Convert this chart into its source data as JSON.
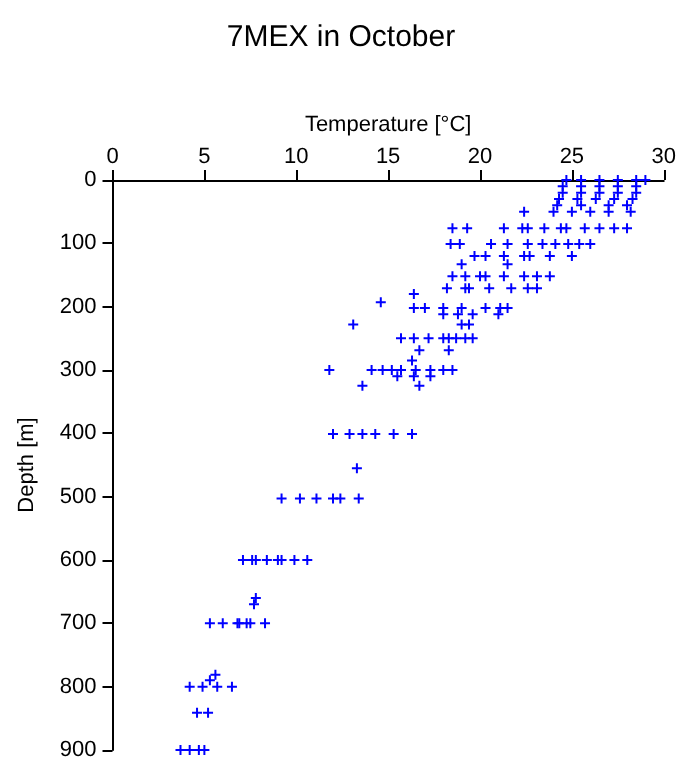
{
  "chart_data": {
    "type": "scatter",
    "title": "7MEX in October",
    "xlabel": "Temperature [°C]",
    "ylabel": "Depth [m]",
    "x": [
      24.7,
      25.5,
      26.5,
      27.5,
      28.5,
      29,
      24.5,
      25.5,
      26.5,
      27.5,
      28.5,
      24.5,
      25.5,
      26.5,
      27.5,
      28.5,
      24.3,
      25.3,
      26.3,
      27.3,
      28.3,
      24.2,
      25.5,
      27,
      28,
      22.4,
      24,
      25,
      26,
      27,
      28.2,
      18.5,
      19.3,
      21.3,
      22.3,
      22.6,
      23.5,
      24.4,
      24.7,
      25.7,
      26.5,
      27.3,
      28,
      18.4,
      18.9,
      20.6,
      21.5,
      22.6,
      23.4,
      24.1,
      24.8,
      25.4,
      26,
      19.7,
      20.3,
      21.3,
      22.4,
      22.7,
      23.8,
      25,
      19,
      21.5,
      18.5,
      19.2,
      20,
      20.3,
      21.3,
      22.4,
      23.1,
      23.8,
      18.2,
      19.2,
      19.4,
      20.5,
      21.7,
      22.6,
      23.1,
      16.4,
      14.6,
      16.4,
      17,
      18,
      19,
      20.3,
      21.1,
      21.5,
      18,
      18.8,
      19.6,
      21,
      13.1,
      19,
      19.4,
      15.7,
      16.4,
      17.2,
      18,
      18.3,
      18.7,
      19.2,
      19.6,
      16.7,
      18.3,
      16.3,
      11.8,
      14.1,
      14.7,
      15.2,
      15.7,
      16.5,
      17.3,
      18,
      18.5,
      15.5,
      16.4,
      17.3,
      13.6,
      16.7,
      12,
      12.9,
      13.6,
      14.3,
      15.3,
      16.3,
      13.3,
      9.2,
      10.2,
      11.1,
      12,
      12.4,
      13.4,
      7.1,
      7.6,
      7.8,
      8.4,
      9,
      9.2,
      9.9,
      10.6,
      7.8,
      7.7,
      5.3,
      6,
      6.8,
      6.9,
      7.3,
      7.5,
      8.3,
      5.6,
      5.3,
      4.2,
      4.9,
      5.7,
      6.5,
      4.6,
      5.2,
      3.7,
      4.2,
      4.7,
      5
    ],
    "values": [
      0,
      0,
      0,
      0,
      0,
      0,
      10,
      10,
      10,
      10,
      10,
      20,
      20,
      20,
      20,
      20,
      30,
      30,
      30,
      30,
      30,
      40,
      40,
      40,
      40,
      50,
      50,
      50,
      50,
      50,
      50,
      76,
      76,
      76,
      76,
      76,
      76,
      76,
      76,
      76,
      76,
      76,
      76,
      101,
      101,
      101,
      101,
      101,
      101,
      101,
      101,
      101,
      101,
      120,
      120,
      120,
      120,
      120,
      120,
      120,
      133,
      133,
      152,
      152,
      152,
      152,
      152,
      152,
      152,
      152,
      171,
      171,
      171,
      171,
      171,
      171,
      171,
      180,
      193,
      202,
      202,
      202,
      202,
      202,
      202,
      202,
      212,
      212,
      212,
      212,
      228,
      228,
      228,
      250,
      250,
      250,
      250,
      250,
      250,
      250,
      250,
      269,
      269,
      285,
      300,
      300,
      300,
      300,
      300,
      300,
      300,
      300,
      300,
      310,
      310,
      310,
      325,
      325,
      401,
      401,
      401,
      401,
      401,
      401,
      455,
      503,
      503,
      503,
      503,
      503,
      503,
      600,
      600,
      600,
      600,
      600,
      600,
      600,
      600,
      660,
      670,
      700,
      700,
      700,
      700,
      700,
      700,
      700,
      781,
      790,
      800,
      800,
      800,
      800,
      841,
      841,
      900,
      900,
      900,
      900
    ],
    "color": "#0000ff",
    "marker": "cross",
    "xlim": [
      0,
      30
    ],
    "xticks": [
      0,
      5,
      10,
      15,
      20,
      25,
      30
    ],
    "ylim": [
      900,
      0
    ],
    "yticks": [
      0,
      100,
      200,
      300,
      400,
      500,
      600,
      700,
      800,
      900
    ],
    "grid": false
  }
}
